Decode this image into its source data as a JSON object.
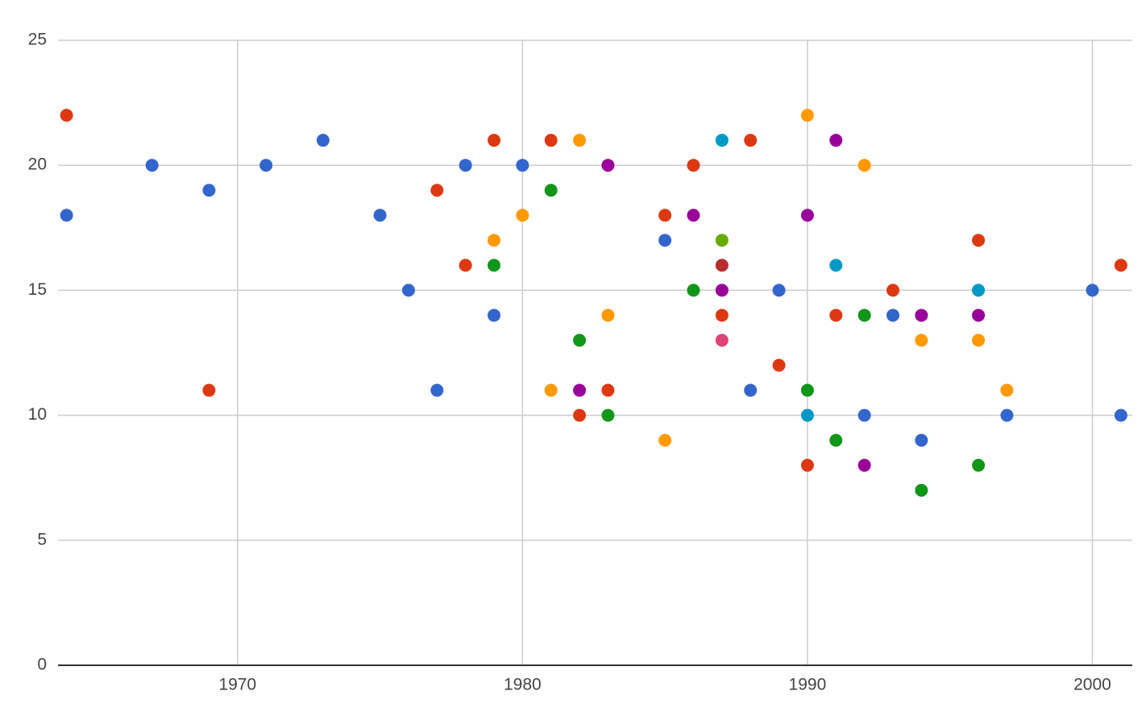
{
  "chart_data": {
    "type": "scatter",
    "xlim": [
      1963.7,
      2001.4
    ],
    "ylim": [
      0,
      25
    ],
    "xticks": [
      1970,
      1980,
      1990,
      2000
    ],
    "yticks": [
      0,
      5,
      10,
      15,
      20,
      25
    ],
    "grid": true,
    "series": [
      {
        "color": "#3366cc",
        "x": [
          1964,
          1967,
          1969,
          1971,
          1973,
          1975,
          1976,
          1977,
          1978,
          1979,
          1980,
          1985,
          1988,
          1989,
          1992,
          1993,
          1994,
          1997,
          2000,
          2001
        ],
        "values": [
          18,
          20,
          19,
          20,
          21,
          18,
          15,
          11,
          20,
          14,
          20,
          17,
          11,
          15,
          10,
          14,
          9,
          10,
          15,
          10
        ]
      },
      {
        "color": "#dc3912",
        "x": [
          1964,
          1969,
          1977,
          1978,
          1979,
          1981,
          1982,
          1983,
          1985,
          1986,
          1987,
          1988,
          1989,
          1990,
          1991,
          1993,
          1996,
          2001
        ],
        "values": [
          22,
          11,
          19,
          16,
          21,
          21,
          10,
          11,
          18,
          20,
          14,
          21,
          12,
          8,
          14,
          15,
          17,
          16
        ]
      },
      {
        "color": "#ff9900",
        "x": [
          1979,
          1980,
          1981,
          1982,
          1983,
          1985,
          1990,
          1992,
          1994,
          1996,
          1997
        ],
        "values": [
          17,
          18,
          11,
          21,
          14,
          9,
          22,
          20,
          13,
          13,
          11
        ]
      },
      {
        "color": "#109618",
        "x": [
          1979,
          1981,
          1982,
          1983,
          1986,
          1990,
          1991,
          1992,
          1994,
          1996
        ],
        "values": [
          16,
          19,
          13,
          10,
          15,
          11,
          9,
          14,
          7,
          8
        ]
      },
      {
        "color": "#990099",
        "x": [
          1982,
          1983,
          1986,
          1987,
          1990,
          1991,
          1992,
          1994,
          1996
        ],
        "values": [
          11,
          20,
          18,
          15,
          18,
          21,
          8,
          14,
          14
        ]
      },
      {
        "color": "#0099c6",
        "x": [
          1987,
          1990,
          1991,
          1996
        ],
        "values": [
          21,
          10,
          16,
          15
        ]
      },
      {
        "color": "#dd4477",
        "x": [
          1987
        ],
        "values": [
          13
        ]
      },
      {
        "color": "#66aa00",
        "x": [
          1987
        ],
        "values": [
          17
        ]
      },
      {
        "color": "#b82e2e",
        "x": [
          1987
        ],
        "values": [
          16
        ]
      }
    ]
  }
}
